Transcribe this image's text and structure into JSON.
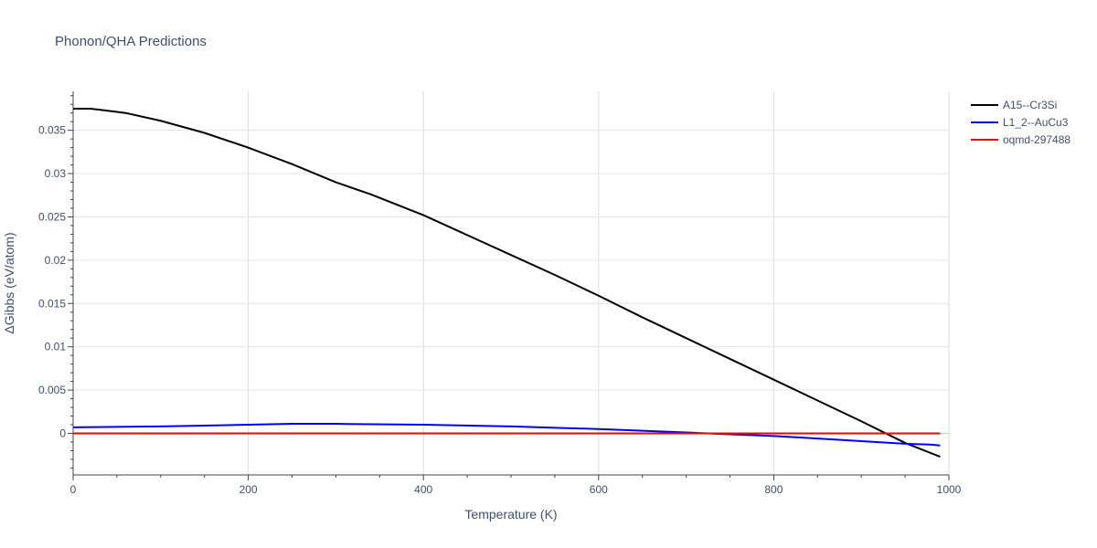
{
  "chart_data": {
    "type": "line",
    "title": "Phonon/QHA Predictions",
    "xlabel": "Temperature (K)",
    "ylabel": "ΔGibbs (eV/atom)",
    "xlim": [
      0,
      1000
    ],
    "ylim": [
      -0.0048,
      0.0395
    ],
    "xticks": [
      0,
      200,
      400,
      600,
      800,
      1000
    ],
    "xtick_labels": [
      "0",
      "200",
      "400",
      "600",
      "800",
      "1000"
    ],
    "yticks": [
      0,
      0.005,
      0.01,
      0.015,
      0.02,
      0.025,
      0.03,
      0.035
    ],
    "ytick_labels": [
      "0",
      "0.005",
      "0.01",
      "0.015",
      "0.02",
      "0.025",
      "0.03",
      "0.035"
    ],
    "grid": true,
    "legend_position": "top-right",
    "series": [
      {
        "name": "A15--Cr3Si",
        "color": "#000000",
        "x": [
          0,
          20,
          60,
          100,
          150,
          200,
          250,
          300,
          340,
          400,
          450,
          500,
          550,
          600,
          650,
          700,
          750,
          800,
          850,
          900,
          950,
          990
        ],
        "y": [
          0.0375,
          0.0375,
          0.037,
          0.0361,
          0.0347,
          0.033,
          0.0311,
          0.029,
          0.0276,
          0.0252,
          0.0229,
          0.0206,
          0.0183,
          0.0159,
          0.0134,
          0.011,
          0.0086,
          0.0062,
          0.0038,
          0.0014,
          -0.0011,
          -0.0027
        ]
      },
      {
        "name": "L1_2--AuCu3",
        "color": "#0000ff",
        "x": [
          0,
          100,
          200,
          250,
          300,
          400,
          500,
          600,
          700,
          750,
          800,
          850,
          900,
          950,
          980,
          990
        ],
        "y": [
          0.0007,
          0.0008,
          0.001,
          0.0011,
          0.0011,
          0.001,
          0.0008,
          0.0005,
          0.0001,
          -0.0001,
          -0.0003,
          -0.0006,
          -0.0009,
          -0.0012,
          -0.0013,
          -0.0014
        ]
      },
      {
        "name": "oqmd-297488",
        "color": "#ff0000",
        "x": [
          0,
          200,
          400,
          600,
          800,
          990
        ],
        "y": [
          0,
          0,
          0,
          0,
          0,
          0
        ]
      }
    ]
  }
}
